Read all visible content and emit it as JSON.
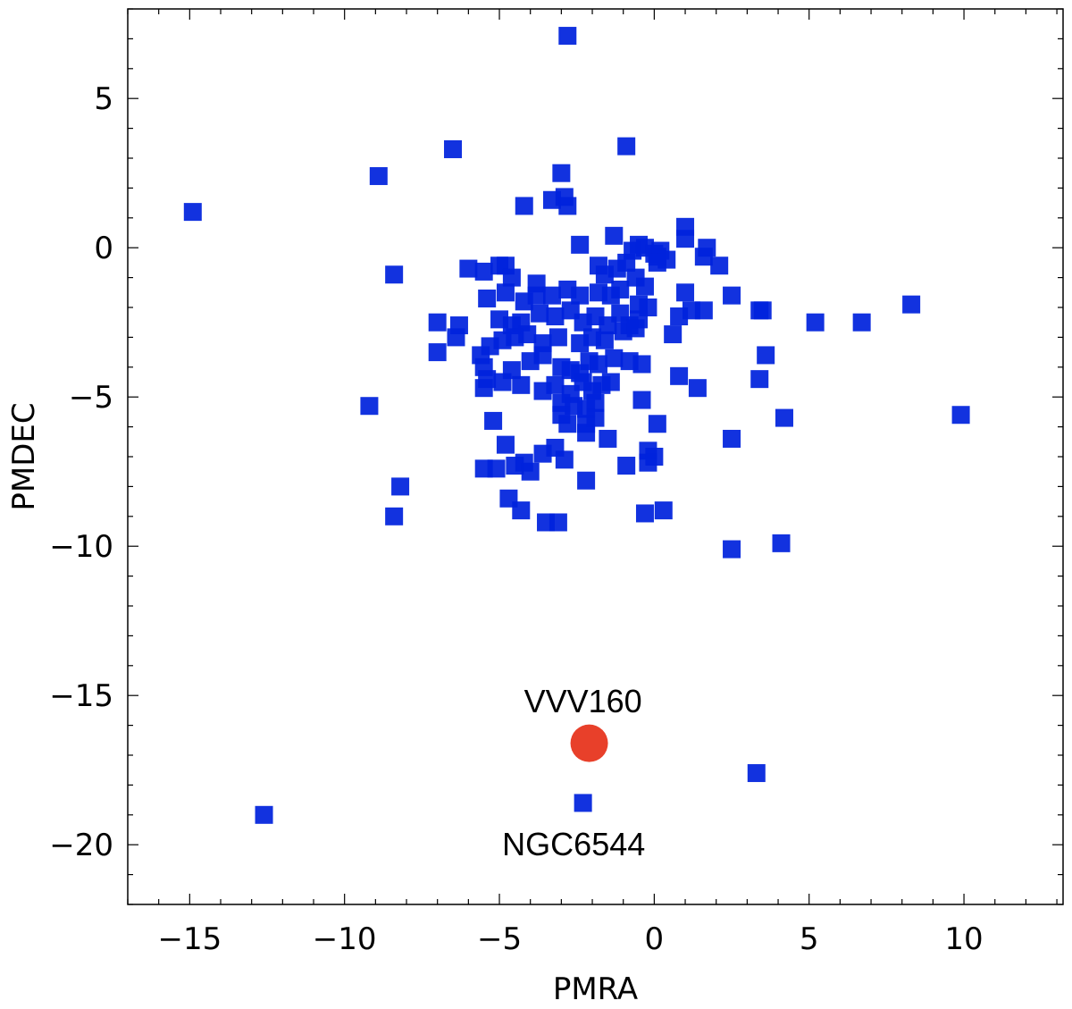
{
  "chart_data": {
    "type": "scatter",
    "title": "",
    "xlabel": "PMRA",
    "ylabel": "PMDEC",
    "xlim": [
      -17,
      13.2
    ],
    "ylim": [
      -22,
      8
    ],
    "xticks": [
      -15,
      -10,
      -5,
      0,
      5,
      10
    ],
    "yticks": [
      -20,
      -15,
      -10,
      -5,
      0,
      5
    ],
    "grid": false,
    "series": [
      {
        "marker": "square",
        "color": "#0022dd",
        "points": [
          [
            -2.8,
            7.1
          ],
          [
            -14.9,
            1.2
          ],
          [
            -8.9,
            2.4
          ],
          [
            -6.5,
            3.3
          ],
          [
            -0.9,
            3.4
          ],
          [
            -3.0,
            2.5
          ],
          [
            -4.2,
            1.4
          ],
          [
            -3.3,
            1.6
          ],
          [
            -2.9,
            1.7
          ],
          [
            -2.8,
            1.4
          ],
          [
            -2.4,
            0.1
          ],
          [
            -1.3,
            0.4
          ],
          [
            -8.4,
            -0.9
          ],
          [
            -6.0,
            -0.7
          ],
          [
            -5.5,
            -0.8
          ],
          [
            -5.0,
            -0.6
          ],
          [
            -4.8,
            -0.6
          ],
          [
            -4.6,
            -1.0
          ],
          [
            -3.8,
            -1.2
          ],
          [
            -1.8,
            -0.6
          ],
          [
            -1.6,
            -0.9
          ],
          [
            -1.2,
            -0.7
          ],
          [
            -0.9,
            -0.5
          ],
          [
            -0.7,
            -0.1
          ],
          [
            -0.5,
            0.1
          ],
          [
            -0.3,
            0.0
          ],
          [
            0.0,
            -0.2
          ],
          [
            0.1,
            -0.3
          ],
          [
            0.2,
            -0.1
          ],
          [
            0.4,
            -0.4
          ],
          [
            1.0,
            0.7
          ],
          [
            1.0,
            0.3
          ],
          [
            1.7,
            0.0
          ],
          [
            1.6,
            -0.3
          ],
          [
            2.1,
            -0.6
          ],
          [
            -0.6,
            -1.0
          ],
          [
            -0.3,
            -1.3
          ],
          [
            0.1,
            -0.5
          ],
          [
            -5.4,
            -1.7
          ],
          [
            -4.8,
            -1.5
          ],
          [
            -4.2,
            -1.8
          ],
          [
            -3.8,
            -1.6
          ],
          [
            -3.3,
            -1.6
          ],
          [
            -2.8,
            -1.4
          ],
          [
            -2.4,
            -1.6
          ],
          [
            -1.8,
            -1.5
          ],
          [
            -1.4,
            -1.6
          ],
          [
            -1.1,
            -1.4
          ],
          [
            -0.5,
            -1.9
          ],
          [
            -0.2,
            -2.0
          ],
          [
            1.0,
            -1.5
          ],
          [
            1.2,
            -2.1
          ],
          [
            1.6,
            -2.1
          ],
          [
            2.5,
            -1.6
          ],
          [
            3.4,
            -2.1
          ],
          [
            3.5,
            -2.1
          ],
          [
            5.2,
            -2.5
          ],
          [
            6.7,
            -2.5
          ],
          [
            8.3,
            -1.9
          ],
          [
            -7.0,
            -2.5
          ],
          [
            -6.3,
            -2.6
          ],
          [
            -6.4,
            -3.0
          ],
          [
            -5.0,
            -2.4
          ],
          [
            -4.6,
            -2.6
          ],
          [
            -4.3,
            -2.5
          ],
          [
            -3.7,
            -2.2
          ],
          [
            -3.2,
            -2.3
          ],
          [
            -2.7,
            -2.1
          ],
          [
            -2.3,
            -2.5
          ],
          [
            -1.9,
            -2.3
          ],
          [
            -1.5,
            -2.6
          ],
          [
            -1.1,
            -2.2
          ],
          [
            -0.8,
            -2.6
          ],
          [
            -0.5,
            -2.4
          ],
          [
            0.8,
            -2.3
          ],
          [
            -7.0,
            -3.5
          ],
          [
            -5.3,
            -3.3
          ],
          [
            -4.9,
            -3.1
          ],
          [
            -4.5,
            -3.0
          ],
          [
            -4.1,
            -2.9
          ],
          [
            -3.6,
            -3.2
          ],
          [
            -3.1,
            -3.0
          ],
          [
            -2.4,
            -3.2
          ],
          [
            -2.0,
            -3.0
          ],
          [
            -1.6,
            -3.1
          ],
          [
            -1.0,
            -2.8
          ],
          [
            -0.6,
            -2.7
          ],
          [
            0.6,
            -2.9
          ],
          [
            -5.6,
            -3.6
          ],
          [
            -5.5,
            -4.0
          ],
          [
            -5.4,
            -4.4
          ],
          [
            -4.6,
            -4.1
          ],
          [
            -4.0,
            -3.8
          ],
          [
            -3.6,
            -3.6
          ],
          [
            -3.0,
            -4.0
          ],
          [
            -2.7,
            -4.1
          ],
          [
            -2.4,
            -4.2
          ],
          [
            -2.1,
            -3.8
          ],
          [
            -1.8,
            -3.9
          ],
          [
            -1.3,
            -3.7
          ],
          [
            -0.8,
            -3.8
          ],
          [
            -0.4,
            -3.9
          ],
          [
            0.8,
            -4.3
          ],
          [
            1.4,
            -4.7
          ],
          [
            3.6,
            -3.6
          ],
          [
            3.4,
            -4.4
          ],
          [
            -9.2,
            -5.3
          ],
          [
            -5.5,
            -4.7
          ],
          [
            -4.9,
            -4.5
          ],
          [
            -4.3,
            -4.6
          ],
          [
            -3.6,
            -4.8
          ],
          [
            -3.2,
            -4.6
          ],
          [
            -2.7,
            -4.9
          ],
          [
            -2.3,
            -4.5
          ],
          [
            -2.0,
            -4.8
          ],
          [
            -1.7,
            -4.6
          ],
          [
            -1.4,
            -4.5
          ],
          [
            -0.4,
            -5.1
          ],
          [
            -3.0,
            -5.2
          ],
          [
            -2.6,
            -5.3
          ],
          [
            -2.2,
            -5.4
          ],
          [
            -1.9,
            -5.2
          ],
          [
            -3.0,
            -5.6
          ],
          [
            -2.8,
            -5.9
          ],
          [
            -2.2,
            -5.9
          ],
          [
            -2.2,
            -6.2
          ],
          [
            -1.9,
            -5.7
          ],
          [
            -5.2,
            -5.8
          ],
          [
            -4.8,
            -6.6
          ],
          [
            -1.5,
            -6.4
          ],
          [
            0.1,
            -5.9
          ],
          [
            2.5,
            -6.4
          ],
          [
            4.2,
            -5.7
          ],
          [
            9.9,
            -5.6
          ],
          [
            -3.2,
            -6.7
          ],
          [
            -3.6,
            -6.9
          ],
          [
            -4.2,
            -7.2
          ],
          [
            -4.5,
            -7.3
          ],
          [
            -4.0,
            -7.5
          ],
          [
            -2.9,
            -7.1
          ],
          [
            -5.5,
            -7.4
          ],
          [
            -5.1,
            -7.4
          ],
          [
            -0.9,
            -7.3
          ],
          [
            -0.2,
            -6.8
          ],
          [
            0.0,
            -7.0
          ],
          [
            -0.2,
            -7.2
          ],
          [
            -2.2,
            -7.8
          ],
          [
            -8.2,
            -8.0
          ],
          [
            -4.7,
            -8.4
          ],
          [
            -4.3,
            -8.8
          ],
          [
            -3.5,
            -9.2
          ],
          [
            -3.1,
            -9.2
          ],
          [
            -8.4,
            -9.0
          ],
          [
            -0.3,
            -8.9
          ],
          [
            0.3,
            -8.8
          ],
          [
            2.5,
            -10.1
          ],
          [
            4.1,
            -9.9
          ],
          [
            -12.6,
            -19.0
          ],
          [
            -2.3,
            -18.6
          ],
          [
            3.3,
            -17.6
          ]
        ]
      },
      {
        "marker": "circle",
        "color": "#e8402a",
        "points": [
          [
            -2.1,
            -16.6
          ]
        ]
      }
    ],
    "annotations": [
      {
        "text": "VVV160",
        "x": -2.3,
        "y": -15.2
      },
      {
        "text": "NGC6544",
        "x": -2.6,
        "y": -20.0
      }
    ]
  }
}
